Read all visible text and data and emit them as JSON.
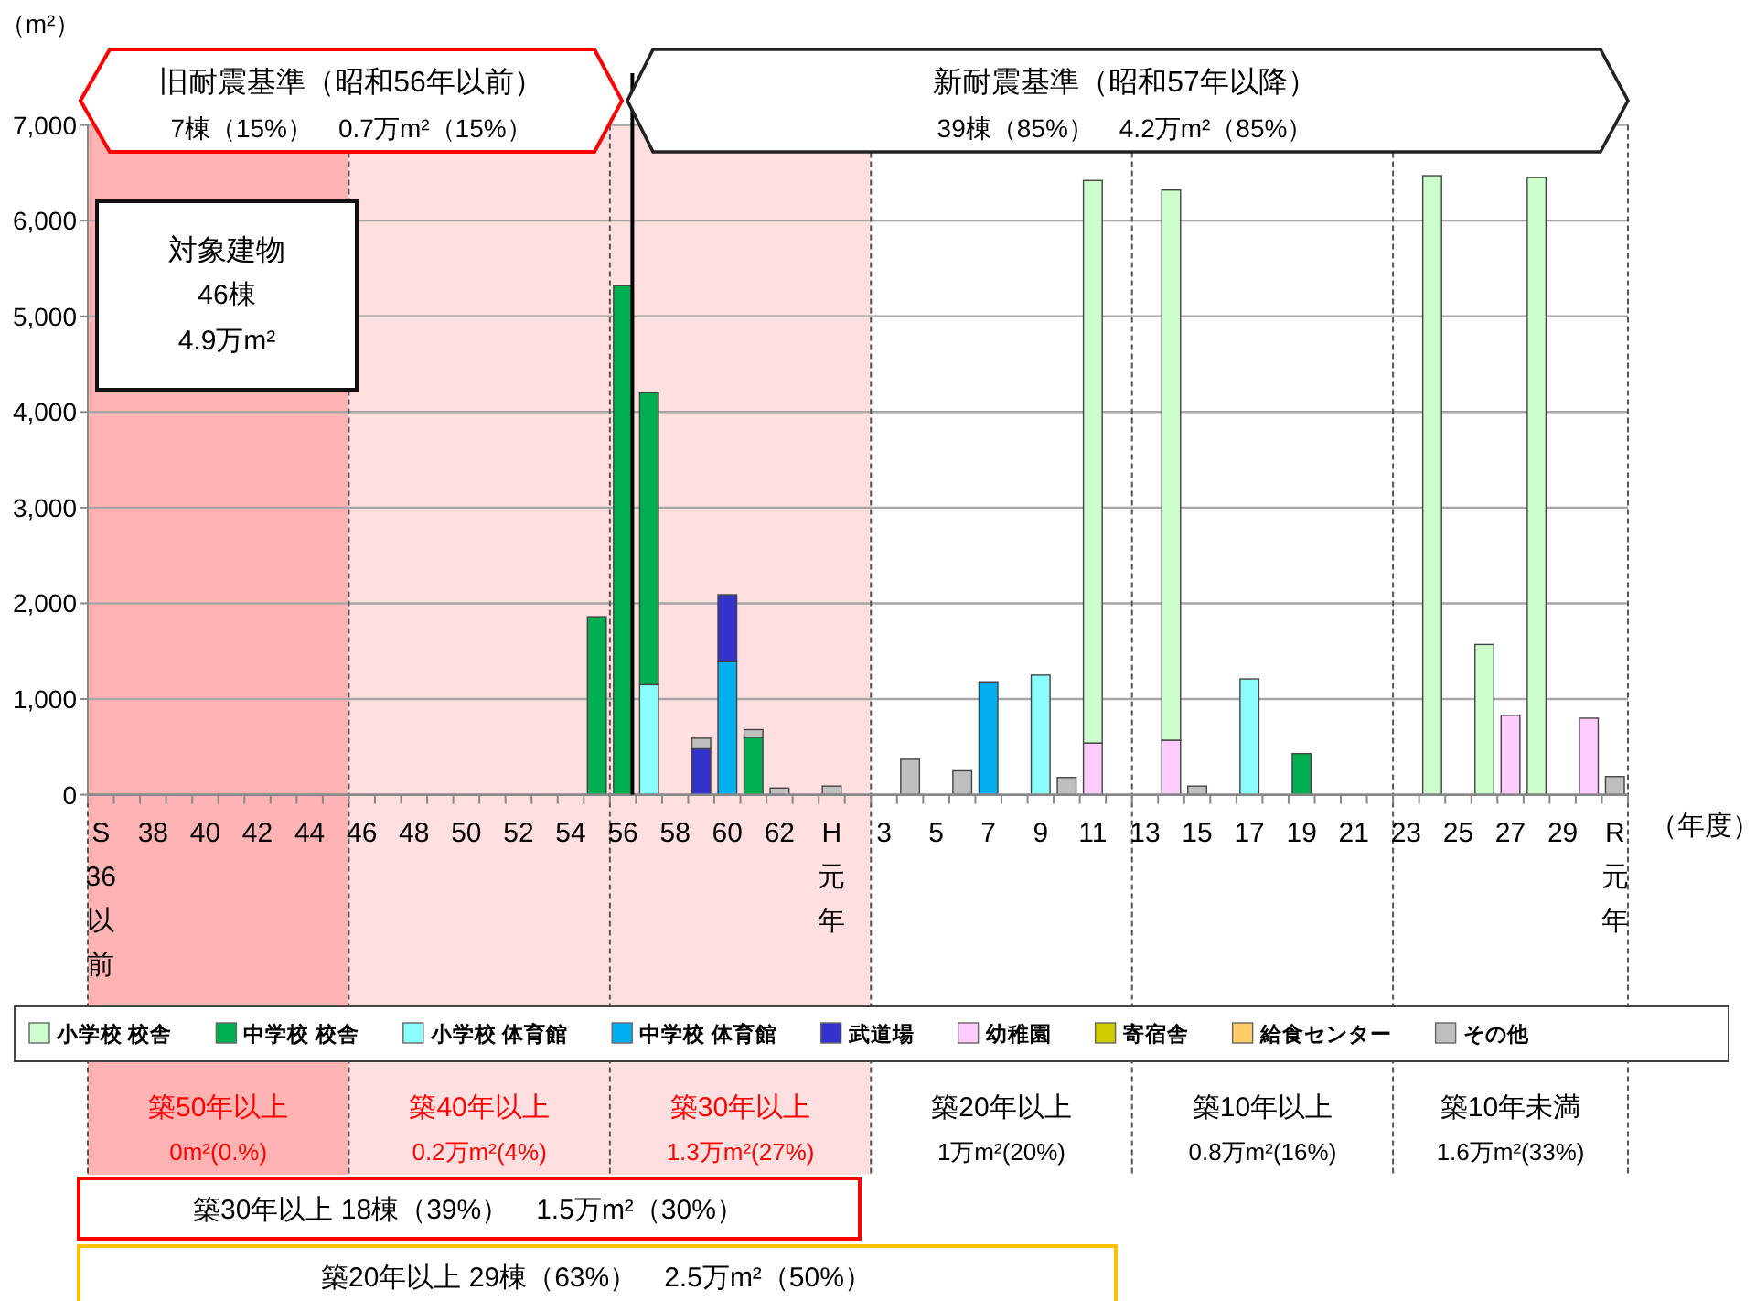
{
  "chart_data": {
    "type": "bar",
    "stacked": true,
    "xlabel": "（年度）",
    "ylabel": "（m²）",
    "ylim": [
      0,
      7000
    ],
    "yticks": [
      0,
      {
        "value": 1000,
        "label": "1,000"
      },
      {
        "value": 2000,
        "label": "2,000"
      },
      {
        "value": 3000,
        "label": "3,000"
      },
      {
        "value": 4000,
        "label": "4,000"
      },
      {
        "value": 5000,
        "label": "5,000"
      },
      {
        "value": 6000,
        "label": "6,000"
      },
      {
        "value": 7000,
        "label": "7,000"
      }
    ],
    "grid": "y",
    "legend": "bottom",
    "categories": [
      "S36以前",
      null,
      "38",
      null,
      "40",
      null,
      "42",
      null,
      "44",
      null,
      "46",
      null,
      "48",
      null,
      "50",
      null,
      "52",
      null,
      "54",
      null,
      "56",
      null,
      "58",
      null,
      "60",
      null,
      "62",
      null,
      "H元年",
      null,
      "3",
      null,
      "5",
      null,
      "7",
      null,
      "9",
      null,
      "11",
      null,
      "13",
      null,
      "15",
      null,
      "17",
      null,
      "19",
      null,
      "21",
      null,
      "23",
      null,
      "25",
      null,
      "27",
      null,
      "29",
      null,
      "R元年"
    ],
    "series": [
      {
        "name": "幼稚園",
        "color": "#ffccff",
        "values": [
          null,
          null,
          null,
          null,
          null,
          null,
          null,
          null,
          null,
          null,
          null,
          null,
          null,
          null,
          null,
          null,
          null,
          null,
          null,
          null,
          null,
          null,
          null,
          null,
          null,
          null,
          null,
          null,
          null,
          null,
          null,
          null,
          null,
          null,
          null,
          null,
          null,
          null,
          540,
          null,
          null,
          570,
          null,
          null,
          null,
          null,
          null,
          null,
          null,
          null,
          null,
          null,
          null,
          null,
          830,
          null,
          null,
          800,
          null
        ]
      },
      {
        "name": "小学校 体育館",
        "color": "#8bffff",
        "values": [
          null,
          null,
          null,
          null,
          null,
          null,
          null,
          null,
          null,
          null,
          null,
          null,
          null,
          null,
          null,
          null,
          null,
          null,
          null,
          null,
          null,
          1150,
          null,
          null,
          null,
          null,
          null,
          null,
          null,
          null,
          null,
          null,
          null,
          null,
          null,
          null,
          1250,
          null,
          null,
          null,
          null,
          null,
          null,
          null,
          1210,
          null,
          null,
          null,
          null,
          null,
          null,
          null,
          null,
          null,
          null,
          null,
          null,
          null,
          null
        ]
      },
      {
        "name": "中学校 体育館",
        "color": "#00b0f0",
        "values": [
          null,
          null,
          null,
          null,
          null,
          null,
          null,
          null,
          null,
          null,
          null,
          null,
          null,
          null,
          null,
          null,
          null,
          null,
          null,
          null,
          null,
          null,
          null,
          null,
          1390,
          null,
          null,
          null,
          null,
          null,
          null,
          null,
          null,
          null,
          1180,
          null,
          null,
          null,
          null,
          null,
          null,
          null,
          null,
          null,
          null,
          null,
          null,
          null,
          null,
          null,
          null,
          null,
          null,
          null,
          null,
          null,
          null,
          null,
          null
        ]
      },
      {
        "name": "小学校 校舎",
        "color": "#ccffcc",
        "values": [
          null,
          null,
          null,
          null,
          null,
          null,
          null,
          null,
          null,
          null,
          null,
          null,
          null,
          null,
          null,
          null,
          null,
          null,
          null,
          null,
          null,
          null,
          null,
          null,
          null,
          null,
          null,
          null,
          null,
          null,
          null,
          null,
          null,
          null,
          null,
          null,
          null,
          null,
          5880,
          null,
          null,
          5750,
          null,
          null,
          null,
          null,
          null,
          null,
          null,
          null,
          null,
          6470,
          null,
          1570,
          null,
          6450,
          null,
          null,
          null
        ]
      },
      {
        "name": "中学校 校舎",
        "color": "#00b050",
        "values": [
          null,
          null,
          null,
          null,
          null,
          null,
          null,
          null,
          null,
          null,
          null,
          null,
          null,
          null,
          null,
          null,
          null,
          null,
          null,
          1860,
          5320,
          3050,
          null,
          null,
          null,
          600,
          null,
          null,
          null,
          null,
          null,
          null,
          null,
          null,
          null,
          null,
          null,
          null,
          null,
          null,
          null,
          null,
          null,
          null,
          null,
          null,
          430,
          null,
          null,
          null,
          null,
          null,
          null,
          null,
          null,
          null,
          null,
          null,
          null
        ]
      },
      {
        "name": "武道場",
        "color": "#3333cc",
        "values": [
          null,
          null,
          null,
          null,
          null,
          null,
          null,
          null,
          null,
          null,
          null,
          null,
          null,
          null,
          null,
          null,
          null,
          null,
          null,
          null,
          null,
          null,
          null,
          480,
          700,
          null,
          null,
          null,
          null,
          null,
          null,
          null,
          null,
          null,
          null,
          null,
          null,
          null,
          null,
          null,
          null,
          null,
          null,
          null,
          null,
          null,
          null,
          null,
          null,
          null,
          null,
          null,
          null,
          null,
          null,
          null,
          null,
          null,
          null
        ]
      },
      {
        "name": "寄宿舎",
        "color": "#cccc00",
        "values": [
          null,
          null,
          null,
          null,
          null,
          null,
          null,
          null,
          null,
          null,
          null,
          null,
          null,
          null,
          null,
          null,
          null,
          null,
          null,
          null,
          null,
          null,
          null,
          null,
          null,
          null,
          null,
          null,
          null,
          null,
          null,
          null,
          null,
          null,
          null,
          null,
          null,
          null,
          null,
          null,
          null,
          null,
          null,
          null,
          null,
          null,
          null,
          null,
          null,
          null,
          null,
          null,
          null,
          null,
          null,
          null,
          null,
          null,
          null
        ]
      },
      {
        "name": "給食センター",
        "color": "#ffcc66",
        "values": [
          null,
          null,
          null,
          null,
          null,
          null,
          null,
          null,
          null,
          null,
          null,
          null,
          null,
          null,
          null,
          null,
          null,
          null,
          null,
          null,
          null,
          null,
          null,
          null,
          null,
          null,
          null,
          null,
          null,
          null,
          null,
          null,
          null,
          null,
          null,
          null,
          null,
          null,
          null,
          null,
          null,
          null,
          null,
          null,
          null,
          null,
          null,
          null,
          null,
          null,
          null,
          null,
          null,
          null,
          null,
          null,
          null,
          null,
          null
        ]
      },
      {
        "name": "その他",
        "color": "#bfbfbf",
        "values": [
          null,
          null,
          null,
          null,
          null,
          null,
          null,
          null,
          null,
          null,
          null,
          null,
          null,
          null,
          null,
          null,
          null,
          null,
          null,
          null,
          null,
          null,
          null,
          110,
          null,
          80,
          70,
          null,
          90,
          null,
          null,
          370,
          null,
          250,
          null,
          null,
          null,
          180,
          null,
          null,
          null,
          null,
          90,
          null,
          null,
          null,
          null,
          null,
          null,
          null,
          null,
          null,
          null,
          null,
          null,
          null,
          null,
          null,
          190
        ]
      }
    ],
    "ref_lines": [
      {
        "axis": "x",
        "value": "56",
        "color": "#000000"
      }
    ],
    "annotations": [
      "旧耐震基準（昭和56年以前）",
      "7棟（15%）　0.7万m²（15%）",
      "新耐震基準（昭和57年以降）",
      "39棟（85%）　4.2万m²（85%）",
      "対象建物",
      "46棟",
      "4.9万m²",
      "築30年以上 18棟（39%）　1.5万m²（30%）",
      "築20年以上 29棟（63%）　2.5万m²（50%）",
      "築50年以上",
      "0m²(0.%)",
      "築40年以上",
      "0.2万m²(4%)",
      "築30年以上",
      "1.3万m²(27%)",
      "築20年以上",
      "1万m²(20%)",
      "築10年以上",
      "0.8万m²(16%)",
      "築10年未満",
      "1.6万m²(33%)"
    ]
  }
}
